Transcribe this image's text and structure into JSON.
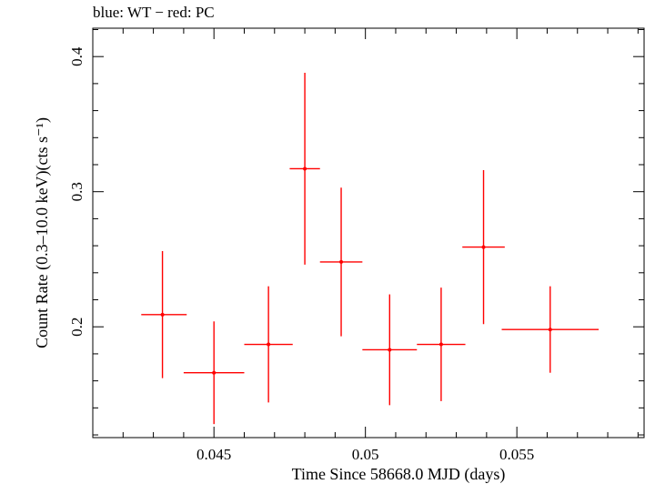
{
  "chart_data": {
    "type": "scatter",
    "title": "blue: WT − red: PC",
    "xlabel": "Time Since 58668.0 MJD (days)",
    "ylabel": "Count Rate (0.3–10.0 keV)(cts s⁻¹)",
    "xlim": [
      0.041,
      0.0592
    ],
    "ylim": [
      0.118,
      0.421
    ],
    "x_ticks": [
      0.045,
      0.05,
      0.055
    ],
    "x_tick_labels": [
      "0.045",
      "0.05",
      "0.055"
    ],
    "y_ticks": [
      0.2,
      0.3,
      0.4
    ],
    "y_tick_labels": [
      "0.2",
      "0.3",
      "0.4"
    ],
    "grid": false,
    "series": [
      {
        "color": "#ff0000",
        "points": [
          {
            "x": 0.0433,
            "y": 0.209,
            "xerr": [
              0.0007,
              0.0008
            ],
            "yerr": [
              0.047,
              0.047
            ]
          },
          {
            "x": 0.045,
            "y": 0.166,
            "xerr": [
              0.001,
              0.001
            ],
            "yerr": [
              0.038,
              0.038
            ]
          },
          {
            "x": 0.0468,
            "y": 0.187,
            "xerr": [
              0.0008,
              0.0008
            ],
            "yerr": [
              0.043,
              0.043
            ]
          },
          {
            "x": 0.048,
            "y": 0.317,
            "xerr": [
              0.0005,
              0.0005
            ],
            "yerr": [
              0.071,
              0.071
            ]
          },
          {
            "x": 0.0492,
            "y": 0.248,
            "xerr": [
              0.0007,
              0.0007
            ],
            "yerr": [
              0.055,
              0.055
            ]
          },
          {
            "x": 0.0508,
            "y": 0.183,
            "xerr": [
              0.0009,
              0.0009
            ],
            "yerr": [
              0.041,
              0.041
            ]
          },
          {
            "x": 0.0525,
            "y": 0.187,
            "xerr": [
              0.0008,
              0.0008
            ],
            "yerr": [
              0.042,
              0.042
            ]
          },
          {
            "x": 0.0539,
            "y": 0.259,
            "xerr": [
              0.0007,
              0.0007
            ],
            "yerr": [
              0.057,
              0.057
            ]
          },
          {
            "x": 0.0561,
            "y": 0.198,
            "xerr": [
              0.0016,
              0.0016
            ],
            "yerr": [
              0.032,
              0.032
            ]
          }
        ]
      }
    ]
  }
}
